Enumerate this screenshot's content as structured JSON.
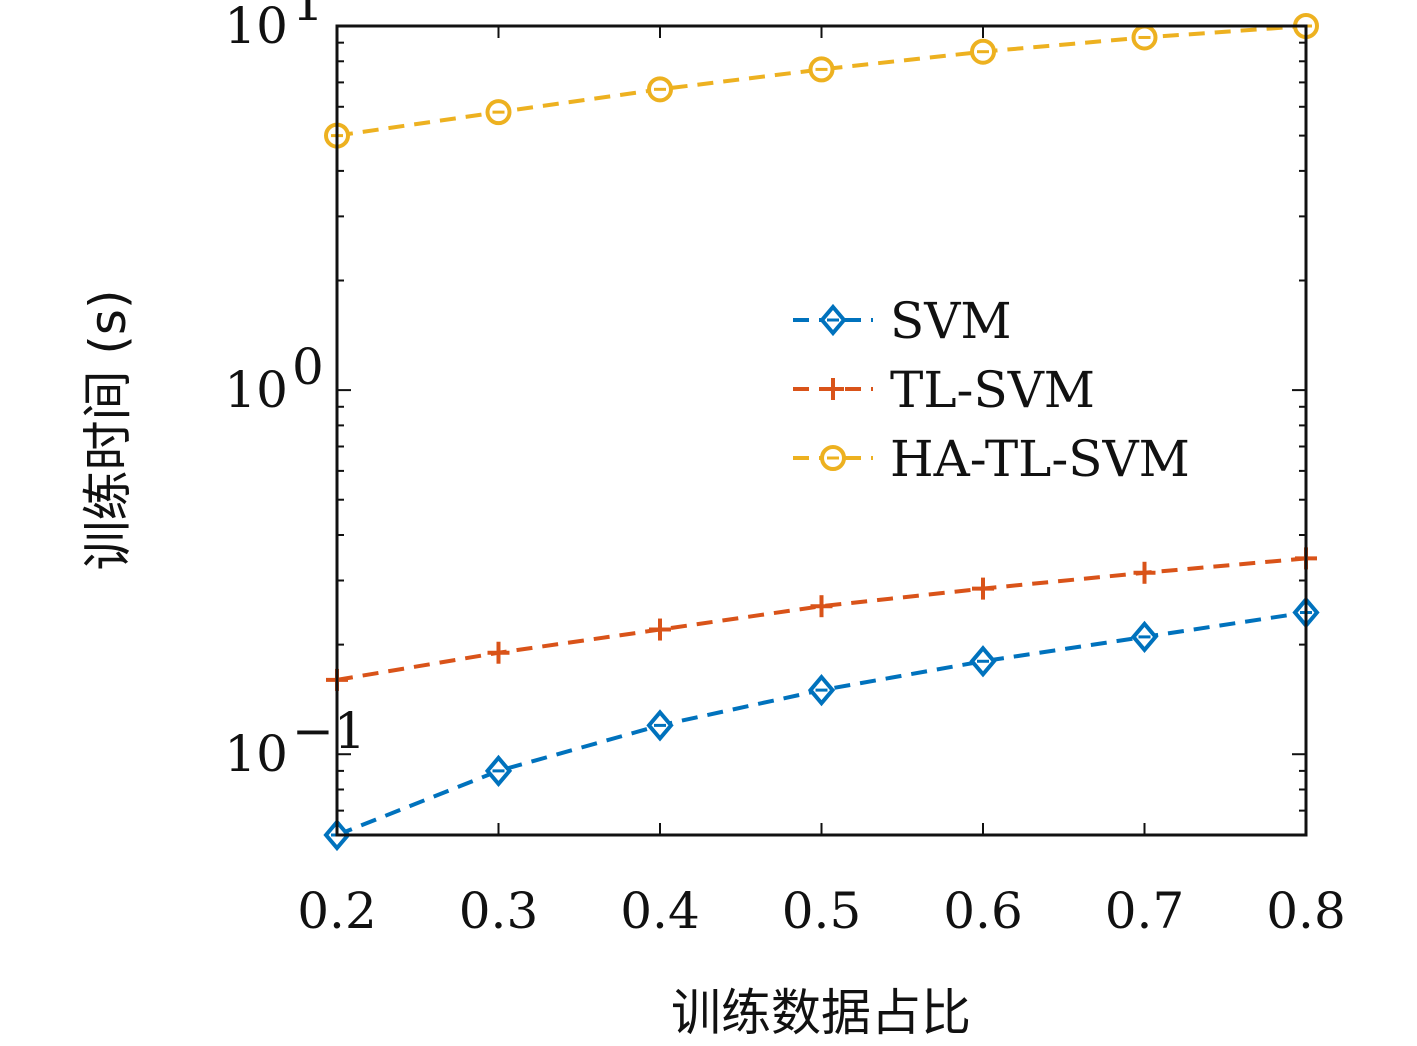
{
  "chart_data": {
    "type": "line",
    "title": "",
    "xlabel": "训练数据占比",
    "ylabel": "训练时间 (s)",
    "xlim": [
      0.2,
      0.8
    ],
    "ylim": [
      0.06,
      10
    ],
    "yscale": "log",
    "x_ticks": [
      "0.2",
      "0.3",
      "0.4",
      "0.5",
      "0.6",
      "0.7",
      "0.8"
    ],
    "y_ticks": [
      {
        "value": 0.1,
        "base": "10",
        "exp": "−1"
      },
      {
        "value": 1,
        "base": "10",
        "exp": "0"
      },
      {
        "value": 10,
        "base": "10",
        "exp": "1"
      }
    ],
    "x": [
      0.2,
      0.3,
      0.4,
      0.5,
      0.6,
      0.7,
      0.8
    ],
    "series": [
      {
        "name": "SVM",
        "values": [
          0.06,
          0.09,
          0.12,
          0.15,
          0.18,
          0.21,
          0.245
        ],
        "color": "#0072BD",
        "marker": "diamond"
      },
      {
        "name": "TL-SVM",
        "values": [
          0.16,
          0.19,
          0.22,
          0.255,
          0.285,
          0.315,
          0.345
        ],
        "color": "#D95319",
        "marker": "plus"
      },
      {
        "name": "HA-TL-SVM",
        "values": [
          5.0,
          5.8,
          6.7,
          7.6,
          8.5,
          9.3,
          10.0
        ],
        "color": "#EDB120",
        "marker": "circle"
      }
    ],
    "grid": false,
    "legend_position": "center-right"
  }
}
